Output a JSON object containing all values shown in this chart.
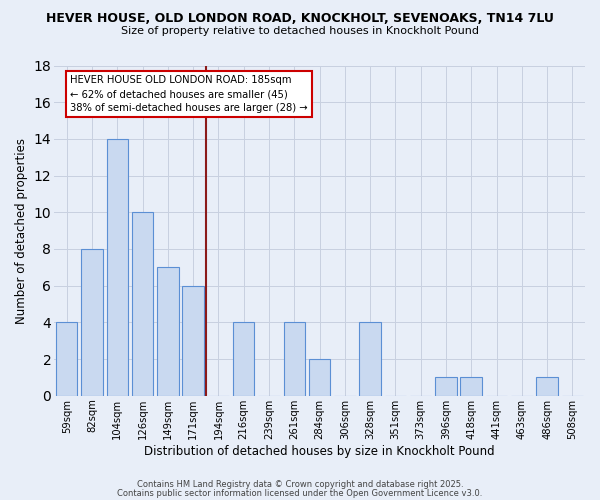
{
  "title": "HEVER HOUSE, OLD LONDON ROAD, KNOCKHOLT, SEVENOAKS, TN14 7LU",
  "subtitle": "Size of property relative to detached houses in Knockholt Pound",
  "xlabel": "Distribution of detached houses by size in Knockholt Pound",
  "ylabel": "Number of detached properties",
  "bar_labels": [
    "59sqm",
    "82sqm",
    "104sqm",
    "126sqm",
    "149sqm",
    "171sqm",
    "194sqm",
    "216sqm",
    "239sqm",
    "261sqm",
    "284sqm",
    "306sqm",
    "328sqm",
    "351sqm",
    "373sqm",
    "396sqm",
    "418sqm",
    "441sqm",
    "463sqm",
    "486sqm",
    "508sqm"
  ],
  "bar_values": [
    4,
    8,
    14,
    10,
    7,
    6,
    0,
    4,
    0,
    4,
    2,
    0,
    4,
    0,
    0,
    1,
    1,
    0,
    0,
    1,
    0
  ],
  "bar_color": "#c9d9f0",
  "bar_edgecolor": "#5b8fd4",
  "vline_x": 6,
  "vline_color": "#8b1a1a",
  "annotation_title": "HEVER HOUSE OLD LONDON ROAD: 185sqm",
  "annotation_line2": "← 62% of detached houses are smaller (45)",
  "annotation_line3": "38% of semi-detached houses are larger (28) →",
  "annotation_box_edgecolor": "#cc0000",
  "annotation_box_facecolor": "#ffffff",
  "ylim": [
    0,
    18
  ],
  "yticks": [
    0,
    2,
    4,
    6,
    8,
    10,
    12,
    14,
    16,
    18
  ],
  "bg_color": "#e8eef8",
  "grid_color": "#c8d0e0",
  "footer1": "Contains HM Land Registry data © Crown copyright and database right 2025.",
  "footer2": "Contains public sector information licensed under the Open Government Licence v3.0."
}
